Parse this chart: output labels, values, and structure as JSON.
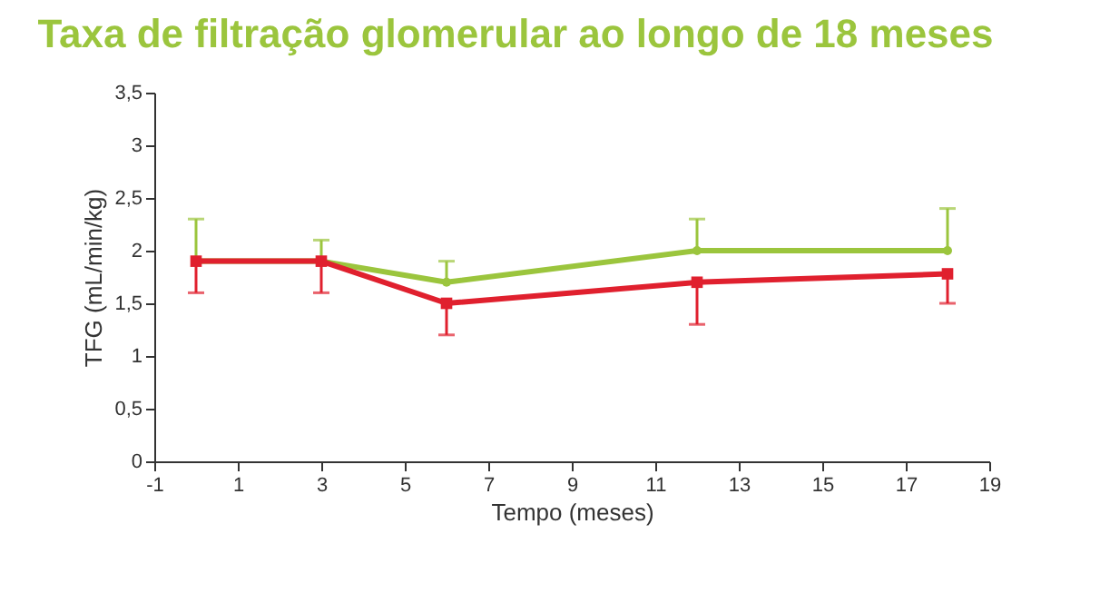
{
  "chart_data": {
    "type": "line",
    "title": "Taxa de filtração glomerular ao longo de 18 meses",
    "xlabel": "Tempo (meses)",
    "ylabel": "TFG (mL/min/kg)",
    "x": [
      0,
      3,
      6,
      12,
      18
    ],
    "series": [
      {
        "color": "#9bc53d",
        "marker": "circle",
        "values": [
          1.9,
          1.9,
          1.7,
          2.0,
          2.0
        ],
        "errors": [
          [
            1.9,
            2.3
          ],
          [
            1.9,
            2.1
          ],
          [
            1.7,
            1.9
          ],
          [
            2.0,
            2.3
          ],
          [
            2.0,
            2.4
          ]
        ]
      },
      {
        "color": "#e0202e",
        "marker": "square",
        "values": [
          1.9,
          1.9,
          1.5,
          1.7,
          1.78
        ],
        "errors": [
          [
            1.6,
            1.9
          ],
          [
            1.6,
            1.9
          ],
          [
            1.2,
            1.5
          ],
          [
            1.3,
            1.7
          ],
          [
            1.5,
            1.78
          ]
        ]
      }
    ],
    "xlim": [
      -1,
      19
    ],
    "xticks": [
      -1,
      1,
      3,
      5,
      7,
      9,
      11,
      13,
      15,
      17,
      19
    ],
    "ylim": [
      0,
      3.5
    ],
    "yticks": [
      0,
      {
        "value": 0.5,
        "label": "0,5"
      },
      1,
      {
        "value": 1.5,
        "label": "1,5"
      },
      2,
      {
        "value": 2.5,
        "label": "2,5"
      },
      3,
      {
        "value": 3.5,
        "label": "3,5"
      }
    ],
    "grid": false,
    "line_style": "solid"
  }
}
